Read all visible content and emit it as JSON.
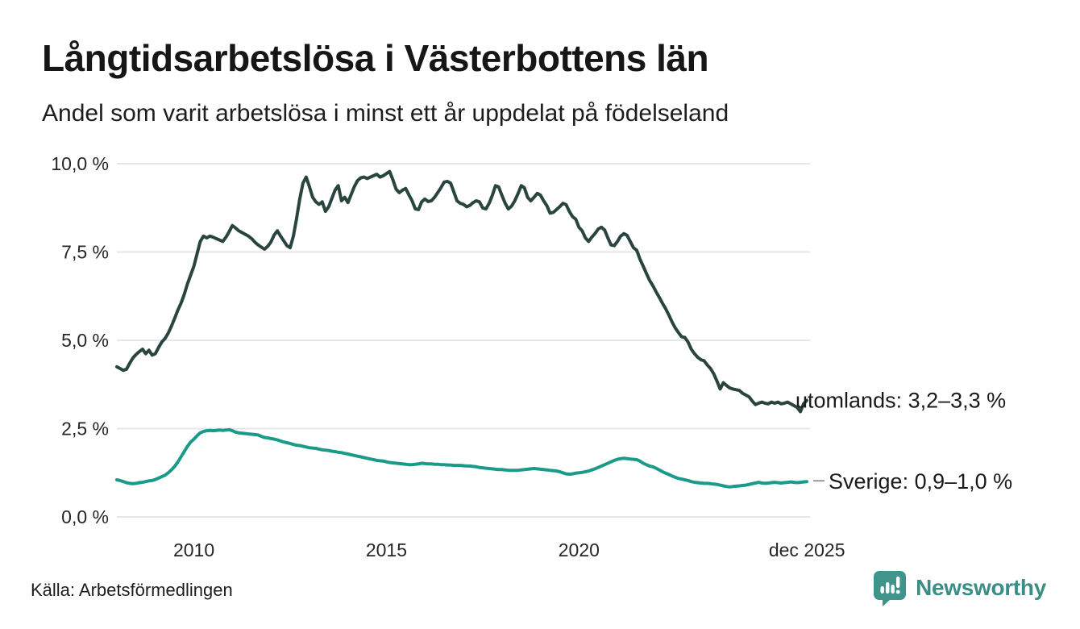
{
  "header": {
    "title": "Långtidsarbetslösa i Västerbottens län",
    "subtitle": "Andel som varit arbetslösa i minst ett år uppdelat på födelseland"
  },
  "footer": {
    "source": "Källa: Arbetsförmedlingen",
    "brand": "Newsworthy"
  },
  "colors": {
    "background": "#ffffff",
    "text": "#1d1d1d",
    "gridline": "#e6e6ea",
    "tick_label": "#262626",
    "annotation_text": "#1a1a1a",
    "connector": "#999999",
    "series_utomlands": "#2a453f",
    "series_sverige": "#1b9a8a",
    "brand_teal": "#40948c"
  },
  "chart_data": {
    "type": "line",
    "title": "Långtidsarbetslösa i Västerbottens län",
    "subtitle": "Andel som varit arbetslösa i minst ett år uppdelat på födelseland",
    "xlabel": "",
    "ylabel": "",
    "grid": true,
    "legend_position": "end-of-line-labels",
    "xlim": [
      2008,
      2026
    ],
    "ylim": [
      0,
      10
    ],
    "x_unit": "year-month",
    "x_start": 2008.0,
    "x_step": 0.0833333,
    "y_ticks": [
      {
        "value": 0,
        "label": "0,0 %"
      },
      {
        "value": 2.5,
        "label": "2,5 %"
      },
      {
        "value": 5,
        "label": "5,0 %"
      },
      {
        "value": 7.5,
        "label": "7,5 %"
      },
      {
        "value": 10,
        "label": "10,0 %"
      }
    ],
    "x_ticks": [
      {
        "value": 2010,
        "label": "2010"
      },
      {
        "value": 2015,
        "label": "2015"
      },
      {
        "value": 2020,
        "label": "2020"
      },
      {
        "value": 2025.92,
        "label": "dec 2025"
      }
    ],
    "series": [
      {
        "name": "utomlands",
        "end_label": "utomlands: 3,2–3,3 %",
        "color": "#2a453f",
        "connector": false,
        "values": [
          4.25,
          4.2,
          4.15,
          4.18,
          4.35,
          4.5,
          4.6,
          4.68,
          4.75,
          4.62,
          4.72,
          4.58,
          4.62,
          4.8,
          4.95,
          5.05,
          5.2,
          5.4,
          5.62,
          5.85,
          6.05,
          6.3,
          6.6,
          6.85,
          7.1,
          7.45,
          7.8,
          7.95,
          7.9,
          7.95,
          7.92,
          7.88,
          7.84,
          7.8,
          7.92,
          8.08,
          8.25,
          8.18,
          8.1,
          8.05,
          8.0,
          7.95,
          7.88,
          7.78,
          7.7,
          7.64,
          7.58,
          7.66,
          7.78,
          7.98,
          8.1,
          7.95,
          7.82,
          7.68,
          7.62,
          7.95,
          8.45,
          9.0,
          9.45,
          9.62,
          9.35,
          9.05,
          8.92,
          8.85,
          8.92,
          8.65,
          8.78,
          9.02,
          9.25,
          9.38,
          8.95,
          9.05,
          8.9,
          9.12,
          9.35,
          9.52,
          9.6,
          9.62,
          9.58,
          9.62,
          9.66,
          9.7,
          9.62,
          9.66,
          9.72,
          9.78,
          9.55,
          9.28,
          9.18,
          9.25,
          9.3,
          9.12,
          8.95,
          8.72,
          8.7,
          8.92,
          9.0,
          8.93,
          8.95,
          9.05,
          9.18,
          9.32,
          9.48,
          9.5,
          9.45,
          9.2,
          8.95,
          8.88,
          8.85,
          8.78,
          8.82,
          8.9,
          8.95,
          8.92,
          8.75,
          8.72,
          8.88,
          9.1,
          9.38,
          9.34,
          9.1,
          8.88,
          8.72,
          8.8,
          8.95,
          9.15,
          9.38,
          9.32,
          9.05,
          8.95,
          9.05,
          9.16,
          9.11,
          8.95,
          8.81,
          8.6,
          8.62,
          8.7,
          8.78,
          8.88,
          8.84,
          8.65,
          8.5,
          8.43,
          8.2,
          8.1,
          7.9,
          7.8,
          7.92,
          8.02,
          8.15,
          8.2,
          8.12,
          7.9,
          7.7,
          7.68,
          7.8,
          7.95,
          8.02,
          7.97,
          7.8,
          7.62,
          7.55,
          7.3,
          7.1,
          6.9,
          6.7,
          6.55,
          6.38,
          6.22,
          6.05,
          5.9,
          5.72,
          5.52,
          5.35,
          5.22,
          5.1,
          5.08,
          4.95,
          4.75,
          4.62,
          4.52,
          4.45,
          4.42,
          4.3,
          4.2,
          4.05,
          3.85,
          3.62,
          3.8,
          3.72,
          3.65,
          3.62,
          3.6,
          3.58,
          3.5,
          3.45,
          3.4,
          3.28,
          3.18,
          3.22,
          3.25,
          3.22,
          3.2,
          3.25,
          3.22,
          3.25,
          3.2,
          3.22,
          3.25,
          3.2,
          3.15,
          3.1,
          2.98,
          3.2,
          3.3
        ]
      },
      {
        "name": "Sverige",
        "end_label": "Sverige: 0,9–1,0 %",
        "color": "#1b9a8a",
        "connector": true,
        "values": [
          1.05,
          1.03,
          1.0,
          0.97,
          0.95,
          0.94,
          0.95,
          0.97,
          0.98,
          1.0,
          1.02,
          1.03,
          1.06,
          1.1,
          1.14,
          1.18,
          1.25,
          1.33,
          1.43,
          1.55,
          1.7,
          1.85,
          2.0,
          2.12,
          2.2,
          2.3,
          2.38,
          2.42,
          2.44,
          2.45,
          2.44,
          2.45,
          2.46,
          2.45,
          2.46,
          2.47,
          2.44,
          2.4,
          2.38,
          2.37,
          2.36,
          2.35,
          2.34,
          2.33,
          2.32,
          2.28,
          2.25,
          2.24,
          2.22,
          2.2,
          2.18,
          2.15,
          2.12,
          2.1,
          2.08,
          2.05,
          2.03,
          2.02,
          2.0,
          1.98,
          1.96,
          1.95,
          1.94,
          1.92,
          1.9,
          1.89,
          1.88,
          1.86,
          1.85,
          1.83,
          1.82,
          1.8,
          1.78,
          1.76,
          1.74,
          1.72,
          1.7,
          1.68,
          1.66,
          1.64,
          1.62,
          1.6,
          1.59,
          1.58,
          1.56,
          1.54,
          1.53,
          1.52,
          1.51,
          1.5,
          1.49,
          1.48,
          1.48,
          1.49,
          1.5,
          1.52,
          1.51,
          1.5,
          1.5,
          1.49,
          1.49,
          1.48,
          1.48,
          1.47,
          1.47,
          1.46,
          1.46,
          1.46,
          1.45,
          1.44,
          1.44,
          1.43,
          1.42,
          1.4,
          1.39,
          1.38,
          1.37,
          1.36,
          1.35,
          1.34,
          1.34,
          1.33,
          1.32,
          1.32,
          1.32,
          1.32,
          1.33,
          1.34,
          1.35,
          1.36,
          1.37,
          1.36,
          1.35,
          1.34,
          1.33,
          1.32,
          1.31,
          1.3,
          1.28,
          1.25,
          1.22,
          1.21,
          1.22,
          1.24,
          1.25,
          1.26,
          1.28,
          1.3,
          1.33,
          1.36,
          1.4,
          1.44,
          1.48,
          1.52,
          1.56,
          1.6,
          1.63,
          1.65,
          1.66,
          1.65,
          1.64,
          1.63,
          1.62,
          1.58,
          1.52,
          1.48,
          1.44,
          1.42,
          1.38,
          1.33,
          1.28,
          1.24,
          1.2,
          1.16,
          1.12,
          1.09,
          1.07,
          1.05,
          1.03,
          1.0,
          0.98,
          0.97,
          0.96,
          0.95,
          0.95,
          0.94,
          0.93,
          0.92,
          0.9,
          0.88,
          0.86,
          0.85,
          0.86,
          0.87,
          0.88,
          0.89,
          0.9,
          0.92,
          0.94,
          0.96,
          0.98,
          0.96,
          0.95,
          0.96,
          0.97,
          0.98,
          0.97,
          0.96,
          0.97,
          0.98,
          0.99,
          0.98,
          0.97,
          0.98,
          0.99,
          1.0
        ]
      }
    ]
  }
}
